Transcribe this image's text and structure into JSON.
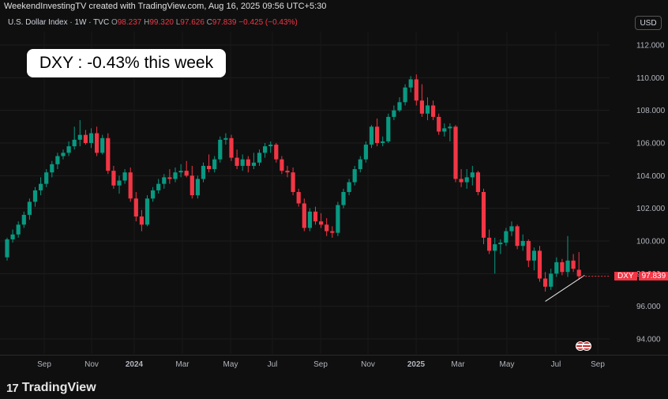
{
  "header": {
    "text": "WeekendInvestingTV created with TradingView.com, Aug 16, 2025 09:56 UTC+5:30"
  },
  "legend": {
    "symbol": "U.S. Dollar Index · 1W · TVC",
    "o_label": "O",
    "o": "98.237",
    "h_label": "H",
    "h": "99.320",
    "l_label": "L",
    "l": "97.626",
    "c_label": "C",
    "c": "97.839",
    "change": "−0.425 (−0.43%)"
  },
  "currency_button": "USD",
  "callout": "DXY : -0.43% this week",
  "price_tag": {
    "symbol": "DXY",
    "value": "97.839"
  },
  "footer": {
    "brand": "TradingView",
    "logo": "17"
  },
  "colors": {
    "up": "#089981",
    "down": "#f23645",
    "background": "#0f0f0f",
    "grid": "#1e1e1e",
    "text": "#b2b5be"
  },
  "chart_data": {
    "type": "candlestick",
    "title": "U.S. Dollar Index · 1W · TVC",
    "ylim": [
      93.0,
      113.0
    ],
    "y_ticks": [
      "112.000",
      "110.000",
      "108.000",
      "106.000",
      "104.000",
      "102.000",
      "100.000",
      "98.000",
      "96.000",
      "94.000"
    ],
    "x_ticks": [
      "Sep",
      "Nov",
      "2024",
      "Mar",
      "May",
      "Jul",
      "Sep",
      "Nov",
      "2025",
      "Mar",
      "May",
      "Jul",
      "Sep"
    ],
    "grid": true,
    "candles": [
      {
        "o": 99.0,
        "h": 100.2,
        "l": 98.8,
        "c": 100.1
      },
      {
        "o": 100.1,
        "h": 100.7,
        "l": 99.9,
        "c": 100.4
      },
      {
        "o": 100.4,
        "h": 101.2,
        "l": 100.2,
        "c": 101.0
      },
      {
        "o": 101.0,
        "h": 101.8,
        "l": 100.8,
        "c": 101.6
      },
      {
        "o": 101.6,
        "h": 102.6,
        "l": 101.3,
        "c": 102.4
      },
      {
        "o": 102.4,
        "h": 103.3,
        "l": 102.1,
        "c": 103.1
      },
      {
        "o": 103.1,
        "h": 103.9,
        "l": 102.8,
        "c": 103.5
      },
      {
        "o": 103.5,
        "h": 104.4,
        "l": 103.3,
        "c": 104.2
      },
      {
        "o": 104.2,
        "h": 104.9,
        "l": 103.9,
        "c": 104.7
      },
      {
        "o": 104.7,
        "h": 105.4,
        "l": 104.4,
        "c": 105.2
      },
      {
        "o": 105.2,
        "h": 105.6,
        "l": 105.0,
        "c": 105.4
      },
      {
        "o": 105.4,
        "h": 106.1,
        "l": 105.2,
        "c": 105.8
      },
      {
        "o": 105.8,
        "h": 107.0,
        "l": 105.6,
        "c": 106.2
      },
      {
        "o": 106.2,
        "h": 107.4,
        "l": 105.8,
        "c": 106.5
      },
      {
        "o": 106.5,
        "h": 106.8,
        "l": 105.9,
        "c": 106.0
      },
      {
        "o": 106.0,
        "h": 106.9,
        "l": 105.7,
        "c": 106.6
      },
      {
        "o": 106.6,
        "h": 107.0,
        "l": 105.2,
        "c": 105.4
      },
      {
        "o": 105.4,
        "h": 106.5,
        "l": 105.3,
        "c": 106.3
      },
      {
        "o": 106.3,
        "h": 106.6,
        "l": 104.1,
        "c": 104.3
      },
      {
        "o": 104.3,
        "h": 104.6,
        "l": 103.2,
        "c": 103.4
      },
      {
        "o": 103.4,
        "h": 104.0,
        "l": 102.9,
        "c": 103.7
      },
      {
        "o": 103.7,
        "h": 104.4,
        "l": 103.5,
        "c": 104.2
      },
      {
        "o": 104.2,
        "h": 104.5,
        "l": 102.4,
        "c": 102.6
      },
      {
        "o": 102.6,
        "h": 103.0,
        "l": 101.2,
        "c": 101.5
      },
      {
        "o": 101.5,
        "h": 101.9,
        "l": 100.6,
        "c": 101.0
      },
      {
        "o": 101.0,
        "h": 102.8,
        "l": 100.9,
        "c": 102.6
      },
      {
        "o": 102.6,
        "h": 103.3,
        "l": 102.4,
        "c": 103.1
      },
      {
        "o": 103.1,
        "h": 103.8,
        "l": 102.9,
        "c": 103.5
      },
      {
        "o": 103.5,
        "h": 104.1,
        "l": 103.2,
        "c": 103.9
      },
      {
        "o": 103.9,
        "h": 104.4,
        "l": 103.5,
        "c": 103.8
      },
      {
        "o": 103.8,
        "h": 104.5,
        "l": 103.6,
        "c": 104.2
      },
      {
        "o": 104.2,
        "h": 104.7,
        "l": 103.9,
        "c": 104.3
      },
      {
        "o": 104.3,
        "h": 104.9,
        "l": 103.9,
        "c": 104.0
      },
      {
        "o": 104.0,
        "h": 104.6,
        "l": 102.6,
        "c": 102.8
      },
      {
        "o": 102.8,
        "h": 104.0,
        "l": 102.6,
        "c": 103.8
      },
      {
        "o": 103.8,
        "h": 104.8,
        "l": 103.6,
        "c": 104.6
      },
      {
        "o": 104.6,
        "h": 105.3,
        "l": 104.2,
        "c": 104.4
      },
      {
        "o": 104.4,
        "h": 105.2,
        "l": 104.2,
        "c": 105.0
      },
      {
        "o": 105.0,
        "h": 106.4,
        "l": 104.8,
        "c": 106.2
      },
      {
        "o": 106.2,
        "h": 106.6,
        "l": 105.9,
        "c": 106.3
      },
      {
        "o": 106.3,
        "h": 106.5,
        "l": 104.9,
        "c": 105.1
      },
      {
        "o": 105.1,
        "h": 105.6,
        "l": 104.4,
        "c": 104.6
      },
      {
        "o": 104.6,
        "h": 105.3,
        "l": 104.3,
        "c": 105.0
      },
      {
        "o": 105.0,
        "h": 105.2,
        "l": 104.2,
        "c": 104.6
      },
      {
        "o": 104.6,
        "h": 105.4,
        "l": 104.4,
        "c": 104.8
      },
      {
        "o": 104.8,
        "h": 105.6,
        "l": 104.6,
        "c": 105.4
      },
      {
        "o": 105.4,
        "h": 106.0,
        "l": 105.1,
        "c": 105.8
      },
      {
        "o": 105.8,
        "h": 106.1,
        "l": 105.4,
        "c": 105.9
      },
      {
        "o": 105.9,
        "h": 106.0,
        "l": 104.8,
        "c": 105.0
      },
      {
        "o": 105.0,
        "h": 105.2,
        "l": 104.1,
        "c": 104.3
      },
      {
        "o": 104.3,
        "h": 104.6,
        "l": 103.9,
        "c": 104.2
      },
      {
        "o": 104.2,
        "h": 104.5,
        "l": 102.8,
        "c": 103.0
      },
      {
        "o": 103.0,
        "h": 103.2,
        "l": 102.1,
        "c": 102.3
      },
      {
        "o": 102.3,
        "h": 102.6,
        "l": 100.6,
        "c": 100.8
      },
      {
        "o": 100.8,
        "h": 102.0,
        "l": 100.6,
        "c": 101.8
      },
      {
        "o": 101.8,
        "h": 102.1,
        "l": 101.0,
        "c": 101.2
      },
      {
        "o": 101.2,
        "h": 101.7,
        "l": 100.8,
        "c": 101.0
      },
      {
        "o": 101.0,
        "h": 101.4,
        "l": 100.3,
        "c": 100.6
      },
      {
        "o": 100.6,
        "h": 100.9,
        "l": 100.2,
        "c": 100.5
      },
      {
        "o": 100.5,
        "h": 102.4,
        "l": 100.3,
        "c": 102.2
      },
      {
        "o": 102.2,
        "h": 103.2,
        "l": 102.0,
        "c": 103.0
      },
      {
        "o": 103.0,
        "h": 103.8,
        "l": 102.8,
        "c": 103.6
      },
      {
        "o": 103.6,
        "h": 104.6,
        "l": 103.4,
        "c": 104.4
      },
      {
        "o": 104.4,
        "h": 105.2,
        "l": 104.2,
        "c": 105.0
      },
      {
        "o": 105.0,
        "h": 106.1,
        "l": 104.8,
        "c": 105.9
      },
      {
        "o": 105.9,
        "h": 107.1,
        "l": 105.7,
        "c": 107.0
      },
      {
        "o": 107.0,
        "h": 107.5,
        "l": 105.8,
        "c": 106.0
      },
      {
        "o": 106.0,
        "h": 106.4,
        "l": 105.8,
        "c": 106.1
      },
      {
        "o": 106.1,
        "h": 107.8,
        "l": 106.0,
        "c": 107.6
      },
      {
        "o": 107.6,
        "h": 108.3,
        "l": 107.4,
        "c": 108.0
      },
      {
        "o": 108.0,
        "h": 108.8,
        "l": 107.9,
        "c": 108.5
      },
      {
        "o": 108.5,
        "h": 109.6,
        "l": 108.3,
        "c": 109.4
      },
      {
        "o": 109.4,
        "h": 110.1,
        "l": 109.1,
        "c": 109.9
      },
      {
        "o": 109.9,
        "h": 110.2,
        "l": 108.3,
        "c": 108.6
      },
      {
        "o": 108.6,
        "h": 109.6,
        "l": 107.6,
        "c": 107.8
      },
      {
        "o": 107.8,
        "h": 108.8,
        "l": 107.4,
        "c": 108.3
      },
      {
        "o": 108.3,
        "h": 108.6,
        "l": 107.4,
        "c": 107.6
      },
      {
        "o": 107.6,
        "h": 107.8,
        "l": 106.5,
        "c": 106.7
      },
      {
        "o": 106.7,
        "h": 107.2,
        "l": 106.4,
        "c": 106.9
      },
      {
        "o": 106.9,
        "h": 107.2,
        "l": 106.1,
        "c": 107.0
      },
      {
        "o": 107.0,
        "h": 107.1,
        "l": 103.6,
        "c": 103.8
      },
      {
        "o": 103.8,
        "h": 104.4,
        "l": 103.3,
        "c": 103.6
      },
      {
        "o": 103.6,
        "h": 104.4,
        "l": 103.2,
        "c": 103.9
      },
      {
        "o": 103.9,
        "h": 104.6,
        "l": 103.4,
        "c": 104.2
      },
      {
        "o": 104.2,
        "h": 104.3,
        "l": 102.8,
        "c": 103.0
      },
      {
        "o": 103.0,
        "h": 103.2,
        "l": 99.8,
        "c": 100.2
      },
      {
        "o": 100.2,
        "h": 100.7,
        "l": 99.2,
        "c": 99.4
      },
      {
        "o": 99.4,
        "h": 100.2,
        "l": 98.0,
        "c": 99.8
      },
      {
        "o": 99.8,
        "h": 100.1,
        "l": 99.2,
        "c": 99.9
      },
      {
        "o": 99.9,
        "h": 100.8,
        "l": 99.7,
        "c": 100.6
      },
      {
        "o": 100.6,
        "h": 101.2,
        "l": 100.3,
        "c": 100.9
      },
      {
        "o": 100.9,
        "h": 101.0,
        "l": 99.5,
        "c": 99.7
      },
      {
        "o": 99.7,
        "h": 100.4,
        "l": 99.4,
        "c": 100.0
      },
      {
        "o": 100.0,
        "h": 100.1,
        "l": 98.4,
        "c": 98.8
      },
      {
        "o": 98.8,
        "h": 99.6,
        "l": 98.2,
        "c": 99.4
      },
      {
        "o": 99.4,
        "h": 99.7,
        "l": 97.5,
        "c": 97.7
      },
      {
        "o": 97.7,
        "h": 98.1,
        "l": 96.9,
        "c": 97.2
      },
      {
        "o": 97.2,
        "h": 98.3,
        "l": 97.0,
        "c": 98.0
      },
      {
        "o": 98.0,
        "h": 99.0,
        "l": 97.8,
        "c": 98.7
      },
      {
        "o": 98.7,
        "h": 98.9,
        "l": 97.9,
        "c": 98.1
      },
      {
        "o": 98.1,
        "h": 100.3,
        "l": 97.8,
        "c": 98.8
      },
      {
        "o": 98.8,
        "h": 99.2,
        "l": 98.1,
        "c": 98.3
      },
      {
        "o": 98.237,
        "h": 99.32,
        "l": 97.626,
        "c": 97.839
      }
    ],
    "trendline": [
      {
        "i": 96,
        "y": 96.3
      },
      {
        "i": 103,
        "y": 97.9
      }
    ],
    "last_price": 97.839
  }
}
